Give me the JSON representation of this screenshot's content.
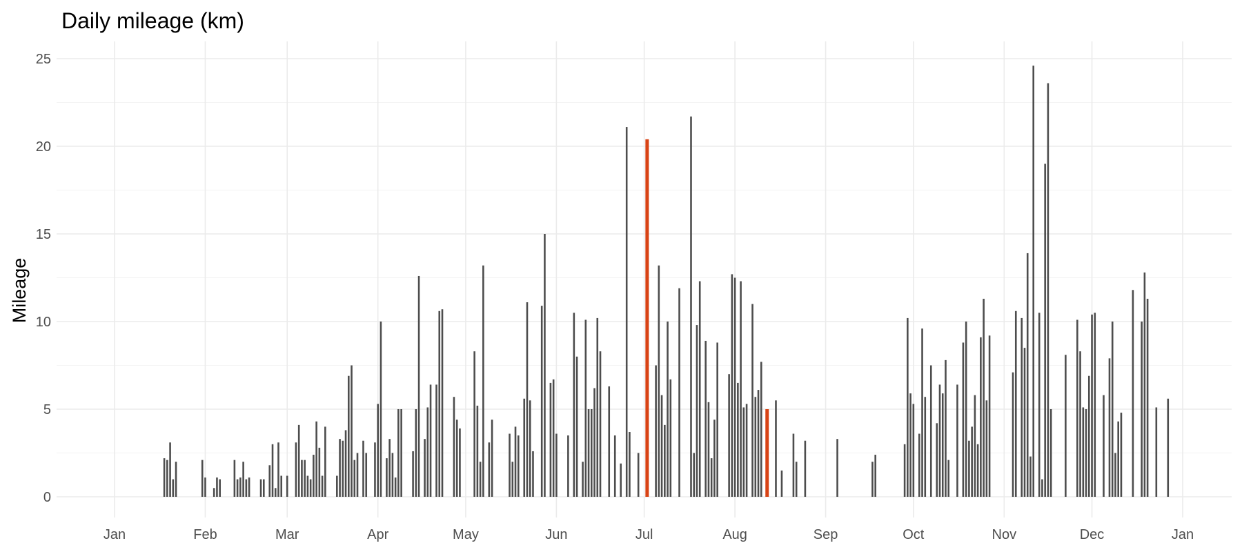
{
  "chart_data": {
    "type": "bar",
    "title": "Daily mileage (km)",
    "xlabel": "",
    "ylabel": "Mileage",
    "ylim": [
      0,
      25
    ],
    "y_ticks": [
      0,
      5,
      10,
      15,
      20,
      25
    ],
    "x_ticks": [
      {
        "label": "Jan",
        "date": "2019-01-01"
      },
      {
        "label": "Feb",
        "date": "2019-02-01"
      },
      {
        "label": "Mar",
        "date": "2019-03-01"
      },
      {
        "label": "Apr",
        "date": "2019-04-01"
      },
      {
        "label": "May",
        "date": "2019-05-01"
      },
      {
        "label": "Jun",
        "date": "2019-06-01"
      },
      {
        "label": "Jul",
        "date": "2019-07-01"
      },
      {
        "label": "Aug",
        "date": "2019-08-01"
      },
      {
        "label": "Sep",
        "date": "2019-09-01"
      },
      {
        "label": "Oct",
        "date": "2019-10-01"
      },
      {
        "label": "Nov",
        "date": "2019-11-01"
      },
      {
        "label": "Dec",
        "date": "2019-12-01"
      },
      {
        "label": "Jan",
        "date": "2020-01-01"
      }
    ],
    "grid": true,
    "legend": "none",
    "colors": {
      "default": "#4d4d4d",
      "highlight": "#d84315"
    },
    "points": [
      {
        "date": "2019-01-18",
        "value": 2.2
      },
      {
        "date": "2019-01-19",
        "value": 2.1
      },
      {
        "date": "2019-01-20",
        "value": 3.1
      },
      {
        "date": "2019-01-21",
        "value": 1.0
      },
      {
        "date": "2019-01-22",
        "value": 2.0
      },
      {
        "date": "2019-01-31",
        "value": 2.1
      },
      {
        "date": "2019-02-01",
        "value": 1.1
      },
      {
        "date": "2019-02-04",
        "value": 0.5
      },
      {
        "date": "2019-02-05",
        "value": 1.1
      },
      {
        "date": "2019-02-06",
        "value": 1.0
      },
      {
        "date": "2019-02-11",
        "value": 2.1
      },
      {
        "date": "2019-02-12",
        "value": 1.0
      },
      {
        "date": "2019-02-13",
        "value": 1.1
      },
      {
        "date": "2019-02-14",
        "value": 2.0
      },
      {
        "date": "2019-02-15",
        "value": 1.0
      },
      {
        "date": "2019-02-16",
        "value": 1.1
      },
      {
        "date": "2019-02-20",
        "value": 1.0
      },
      {
        "date": "2019-02-21",
        "value": 1.0
      },
      {
        "date": "2019-02-23",
        "value": 1.8
      },
      {
        "date": "2019-02-24",
        "value": 3.0
      },
      {
        "date": "2019-02-25",
        "value": 0.5
      },
      {
        "date": "2019-02-26",
        "value": 3.1
      },
      {
        "date": "2019-02-27",
        "value": 1.2
      },
      {
        "date": "2019-03-01",
        "value": 1.2
      },
      {
        "date": "2019-03-04",
        "value": 3.1
      },
      {
        "date": "2019-03-05",
        "value": 4.1
      },
      {
        "date": "2019-03-06",
        "value": 2.1
      },
      {
        "date": "2019-03-07",
        "value": 2.1
      },
      {
        "date": "2019-03-08",
        "value": 1.2
      },
      {
        "date": "2019-03-09",
        "value": 1.0
      },
      {
        "date": "2019-03-10",
        "value": 2.4
      },
      {
        "date": "2019-03-11",
        "value": 4.3
      },
      {
        "date": "2019-03-12",
        "value": 2.8
      },
      {
        "date": "2019-03-13",
        "value": 1.2
      },
      {
        "date": "2019-03-14",
        "value": 4.0
      },
      {
        "date": "2019-03-18",
        "value": 1.2
      },
      {
        "date": "2019-03-19",
        "value": 3.3
      },
      {
        "date": "2019-03-20",
        "value": 3.2
      },
      {
        "date": "2019-03-21",
        "value": 3.8
      },
      {
        "date": "2019-03-22",
        "value": 6.9
      },
      {
        "date": "2019-03-23",
        "value": 7.5
      },
      {
        "date": "2019-03-24",
        "value": 2.1
      },
      {
        "date": "2019-03-25",
        "value": 2.5
      },
      {
        "date": "2019-03-27",
        "value": 3.2
      },
      {
        "date": "2019-03-28",
        "value": 2.5
      },
      {
        "date": "2019-03-31",
        "value": 3.1
      },
      {
        "date": "2019-04-01",
        "value": 5.3
      },
      {
        "date": "2019-04-02",
        "value": 10.0
      },
      {
        "date": "2019-04-04",
        "value": 2.2
      },
      {
        "date": "2019-04-05",
        "value": 3.3
      },
      {
        "date": "2019-04-06",
        "value": 2.5
      },
      {
        "date": "2019-04-07",
        "value": 1.1
      },
      {
        "date": "2019-04-08",
        "value": 5.0
      },
      {
        "date": "2019-04-09",
        "value": 5.0
      },
      {
        "date": "2019-04-13",
        "value": 2.6
      },
      {
        "date": "2019-04-14",
        "value": 5.0
      },
      {
        "date": "2019-04-15",
        "value": 12.6
      },
      {
        "date": "2019-04-17",
        "value": 3.3
      },
      {
        "date": "2019-04-18",
        "value": 5.1
      },
      {
        "date": "2019-04-19",
        "value": 6.4
      },
      {
        "date": "2019-04-21",
        "value": 6.4
      },
      {
        "date": "2019-04-22",
        "value": 10.6
      },
      {
        "date": "2019-04-23",
        "value": 10.7
      },
      {
        "date": "2019-04-27",
        "value": 5.7
      },
      {
        "date": "2019-04-28",
        "value": 4.4
      },
      {
        "date": "2019-04-29",
        "value": 3.9
      },
      {
        "date": "2019-05-04",
        "value": 8.3
      },
      {
        "date": "2019-05-05",
        "value": 5.2
      },
      {
        "date": "2019-05-06",
        "value": 2.0
      },
      {
        "date": "2019-05-07",
        "value": 13.2
      },
      {
        "date": "2019-05-09",
        "value": 3.1
      },
      {
        "date": "2019-05-10",
        "value": 4.4
      },
      {
        "date": "2019-05-16",
        "value": 3.6
      },
      {
        "date": "2019-05-17",
        "value": 2.0
      },
      {
        "date": "2019-05-18",
        "value": 4.0
      },
      {
        "date": "2019-05-19",
        "value": 3.5
      },
      {
        "date": "2019-05-21",
        "value": 5.6
      },
      {
        "date": "2019-05-22",
        "value": 11.1
      },
      {
        "date": "2019-05-23",
        "value": 5.5
      },
      {
        "date": "2019-05-24",
        "value": 2.6
      },
      {
        "date": "2019-05-27",
        "value": 10.9
      },
      {
        "date": "2019-05-28",
        "value": 15.0
      },
      {
        "date": "2019-05-30",
        "value": 6.5
      },
      {
        "date": "2019-05-31",
        "value": 6.7
      },
      {
        "date": "2019-06-01",
        "value": 3.6
      },
      {
        "date": "2019-06-05",
        "value": 3.5
      },
      {
        "date": "2019-06-07",
        "value": 10.5
      },
      {
        "date": "2019-06-08",
        "value": 8.0
      },
      {
        "date": "2019-06-10",
        "value": 2.0
      },
      {
        "date": "2019-06-11",
        "value": 10.1
      },
      {
        "date": "2019-06-12",
        "value": 5.0
      },
      {
        "date": "2019-06-13",
        "value": 5.0
      },
      {
        "date": "2019-06-14",
        "value": 6.2
      },
      {
        "date": "2019-06-15",
        "value": 10.2
      },
      {
        "date": "2019-06-16",
        "value": 8.3
      },
      {
        "date": "2019-06-19",
        "value": 6.3
      },
      {
        "date": "2019-06-21",
        "value": 3.5
      },
      {
        "date": "2019-06-23",
        "value": 1.9
      },
      {
        "date": "2019-06-25",
        "value": 21.1
      },
      {
        "date": "2019-06-26",
        "value": 3.7
      },
      {
        "date": "2019-06-29",
        "value": 2.5
      },
      {
        "date": "2019-07-02",
        "value": 20.4,
        "highlight": true
      },
      {
        "date": "2019-07-05",
        "value": 7.5
      },
      {
        "date": "2019-07-06",
        "value": 13.2
      },
      {
        "date": "2019-07-07",
        "value": 5.8
      },
      {
        "date": "2019-07-08",
        "value": 4.1
      },
      {
        "date": "2019-07-09",
        "value": 10.0
      },
      {
        "date": "2019-07-10",
        "value": 6.7
      },
      {
        "date": "2019-07-13",
        "value": 11.9
      },
      {
        "date": "2019-07-17",
        "value": 21.7
      },
      {
        "date": "2019-07-18",
        "value": 2.5
      },
      {
        "date": "2019-07-19",
        "value": 9.8
      },
      {
        "date": "2019-07-20",
        "value": 12.3
      },
      {
        "date": "2019-07-22",
        "value": 8.9
      },
      {
        "date": "2019-07-23",
        "value": 5.4
      },
      {
        "date": "2019-07-24",
        "value": 2.2
      },
      {
        "date": "2019-07-25",
        "value": 4.4
      },
      {
        "date": "2019-07-26",
        "value": 8.8
      },
      {
        "date": "2019-07-30",
        "value": 7.0
      },
      {
        "date": "2019-07-31",
        "value": 12.7
      },
      {
        "date": "2019-08-01",
        "value": 12.5
      },
      {
        "date": "2019-08-02",
        "value": 6.5
      },
      {
        "date": "2019-08-03",
        "value": 12.3
      },
      {
        "date": "2019-08-04",
        "value": 5.1
      },
      {
        "date": "2019-08-05",
        "value": 5.3
      },
      {
        "date": "2019-08-07",
        "value": 11.0
      },
      {
        "date": "2019-08-08",
        "value": 5.7
      },
      {
        "date": "2019-08-09",
        "value": 6.1
      },
      {
        "date": "2019-08-10",
        "value": 7.7
      },
      {
        "date": "2019-08-12",
        "value": 5.0,
        "highlight": true
      },
      {
        "date": "2019-08-15",
        "value": 5.5
      },
      {
        "date": "2019-08-17",
        "value": 1.5
      },
      {
        "date": "2019-08-21",
        "value": 3.6
      },
      {
        "date": "2019-08-22",
        "value": 2.0
      },
      {
        "date": "2019-08-25",
        "value": 3.2
      },
      {
        "date": "2019-09-05",
        "value": 3.3
      },
      {
        "date": "2019-09-17",
        "value": 2.0
      },
      {
        "date": "2019-09-18",
        "value": 2.4
      },
      {
        "date": "2019-09-28",
        "value": 3.0
      },
      {
        "date": "2019-09-29",
        "value": 10.2
      },
      {
        "date": "2019-09-30",
        "value": 5.9
      },
      {
        "date": "2019-10-01",
        "value": 5.3
      },
      {
        "date": "2019-10-03",
        "value": 3.6
      },
      {
        "date": "2019-10-04",
        "value": 9.6
      },
      {
        "date": "2019-10-05",
        "value": 5.7
      },
      {
        "date": "2019-10-07",
        "value": 7.5
      },
      {
        "date": "2019-10-09",
        "value": 4.2
      },
      {
        "date": "2019-10-10",
        "value": 6.4
      },
      {
        "date": "2019-10-11",
        "value": 5.9
      },
      {
        "date": "2019-10-12",
        "value": 7.8
      },
      {
        "date": "2019-10-13",
        "value": 2.1
      },
      {
        "date": "2019-10-16",
        "value": 6.4
      },
      {
        "date": "2019-10-18",
        "value": 8.8
      },
      {
        "date": "2019-10-19",
        "value": 10.0
      },
      {
        "date": "2019-10-20",
        "value": 3.2
      },
      {
        "date": "2019-10-21",
        "value": 4.0
      },
      {
        "date": "2019-10-22",
        "value": 5.8
      },
      {
        "date": "2019-10-23",
        "value": 3.0
      },
      {
        "date": "2019-10-24",
        "value": 9.1
      },
      {
        "date": "2019-10-25",
        "value": 11.3
      },
      {
        "date": "2019-10-26",
        "value": 5.5
      },
      {
        "date": "2019-10-27",
        "value": 9.2
      },
      {
        "date": "2019-11-04",
        "value": 7.1
      },
      {
        "date": "2019-11-05",
        "value": 10.6
      },
      {
        "date": "2019-11-07",
        "value": 10.2
      },
      {
        "date": "2019-11-08",
        "value": 8.5
      },
      {
        "date": "2019-11-09",
        "value": 13.9
      },
      {
        "date": "2019-11-10",
        "value": 2.3
      },
      {
        "date": "2019-11-11",
        "value": 24.6
      },
      {
        "date": "2019-11-13",
        "value": 10.5
      },
      {
        "date": "2019-11-14",
        "value": 1.0
      },
      {
        "date": "2019-11-15",
        "value": 19.0
      },
      {
        "date": "2019-11-16",
        "value": 23.6
      },
      {
        "date": "2019-11-17",
        "value": 5.0
      },
      {
        "date": "2019-11-22",
        "value": 8.1
      },
      {
        "date": "2019-11-26",
        "value": 10.1
      },
      {
        "date": "2019-11-27",
        "value": 8.3
      },
      {
        "date": "2019-11-28",
        "value": 5.1
      },
      {
        "date": "2019-11-29",
        "value": 5.0
      },
      {
        "date": "2019-11-30",
        "value": 6.9
      },
      {
        "date": "2019-12-01",
        "value": 10.4
      },
      {
        "date": "2019-12-02",
        "value": 10.5
      },
      {
        "date": "2019-12-05",
        "value": 5.8
      },
      {
        "date": "2019-12-07",
        "value": 7.9
      },
      {
        "date": "2019-12-08",
        "value": 10.0
      },
      {
        "date": "2019-12-09",
        "value": 2.5
      },
      {
        "date": "2019-12-10",
        "value": 4.3
      },
      {
        "date": "2019-12-11",
        "value": 4.8
      },
      {
        "date": "2019-12-15",
        "value": 11.8
      },
      {
        "date": "2019-12-18",
        "value": 10.0
      },
      {
        "date": "2019-12-19",
        "value": 12.8
      },
      {
        "date": "2019-12-20",
        "value": 11.3
      },
      {
        "date": "2019-12-23",
        "value": 5.1
      },
      {
        "date": "2019-12-27",
        "value": 5.6
      }
    ]
  }
}
